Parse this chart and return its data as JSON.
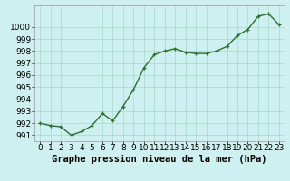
{
  "x": [
    0,
    1,
    2,
    3,
    4,
    5,
    6,
    7,
    8,
    9,
    10,
    11,
    12,
    13,
    14,
    15,
    16,
    17,
    18,
    19,
    20,
    21,
    22,
    23
  ],
  "y": [
    992.0,
    991.8,
    991.7,
    991.0,
    991.3,
    991.8,
    992.8,
    992.2,
    993.4,
    994.8,
    996.6,
    997.7,
    998.0,
    998.2,
    997.9,
    997.8,
    997.8,
    998.0,
    998.4,
    999.3,
    999.8,
    1000.9,
    1001.1,
    1000.2
  ],
  "line_color": "#2d6e2d",
  "marker_color": "#2d6e2d",
  "bg_color": "#cff0f0",
  "grid_color": "#a8d8cc",
  "xlabel": "Graphe pression niveau de la mer (hPa)",
  "xlabel_fontsize": 7.5,
  "yticks": [
    991,
    992,
    993,
    994,
    995,
    996,
    997,
    998,
    999,
    1000
  ],
  "ylim": [
    990.5,
    1001.8
  ],
  "xlim": [
    -0.5,
    23.5
  ],
  "tick_fontsize": 6.5,
  "marker_size": 3.5,
  "line_width": 1.0
}
